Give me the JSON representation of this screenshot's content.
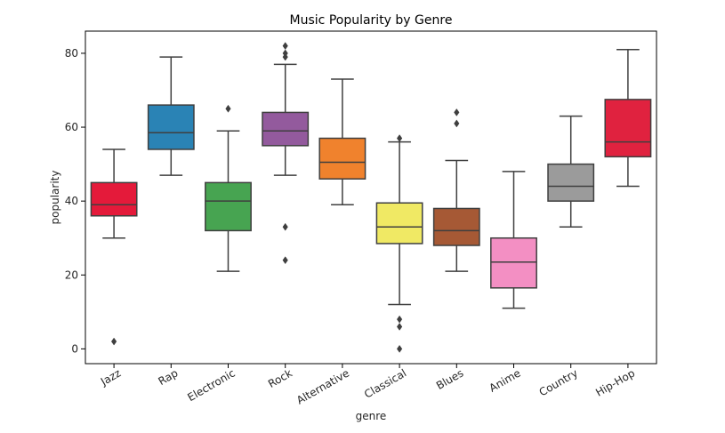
{
  "chart_data": {
    "type": "box",
    "title": "Music Popularity by Genre",
    "xlabel": "genre",
    "ylabel": "popularity",
    "ylim": [
      -4,
      86
    ],
    "yticks": [
      0,
      20,
      40,
      60,
      80
    ],
    "grid": false,
    "categories": [
      "Jazz",
      "Rap",
      "Electronic",
      "Rock",
      "Alternative",
      "Classical",
      "Blues",
      "Anime",
      "Country",
      "Hip-Hop"
    ],
    "boxes": [
      {
        "category": "Jazz",
        "color": "#e41a3a",
        "q1": 36,
        "median": 39,
        "q3": 45,
        "whisker_low": 30,
        "whisker_high": 54,
        "outliers": [
          2
        ]
      },
      {
        "category": "Rap",
        "color": "#2a83b5",
        "q1": 54,
        "median": 58.5,
        "q3": 66,
        "whisker_low": 47,
        "whisker_high": 79,
        "outliers": []
      },
      {
        "category": "Electronic",
        "color": "#47a451",
        "q1": 32,
        "median": 40,
        "q3": 45,
        "whisker_low": 21,
        "whisker_high": 59,
        "outliers": [
          65
        ]
      },
      {
        "category": "Rock",
        "color": "#935a9d",
        "q1": 55,
        "median": 59,
        "q3": 64,
        "whisker_low": 47,
        "whisker_high": 77,
        "outliers": [
          24,
          33,
          79,
          80,
          82
        ]
      },
      {
        "category": "Alternative",
        "color": "#f0822d",
        "q1": 46,
        "median": 50.5,
        "q3": 57,
        "whisker_low": 39,
        "whisker_high": 73,
        "outliers": []
      },
      {
        "category": "Classical",
        "color": "#f0e964",
        "q1": 28.5,
        "median": 33,
        "q3": 39.5,
        "whisker_low": 12,
        "whisker_high": 56,
        "outliers": [
          0,
          6,
          8,
          57
        ]
      },
      {
        "category": "Blues",
        "color": "#a65935",
        "q1": 28,
        "median": 32,
        "q3": 38,
        "whisker_low": 21,
        "whisker_high": 51,
        "outliers": [
          61,
          64
        ]
      },
      {
        "category": "Anime",
        "color": "#f38fc3",
        "q1": 16.5,
        "median": 23.5,
        "q3": 30,
        "whisker_low": 11,
        "whisker_high": 48,
        "outliers": []
      },
      {
        "category": "Country",
        "color": "#9b9b9b",
        "q1": 40,
        "median": 44,
        "q3": 50,
        "whisker_low": 33,
        "whisker_high": 63,
        "outliers": []
      },
      {
        "category": "Hip-Hop",
        "color": "#e0223f",
        "q1": 52,
        "median": 56,
        "q3": 67.5,
        "whisker_low": 44,
        "whisker_high": 81,
        "outliers": []
      }
    ]
  }
}
